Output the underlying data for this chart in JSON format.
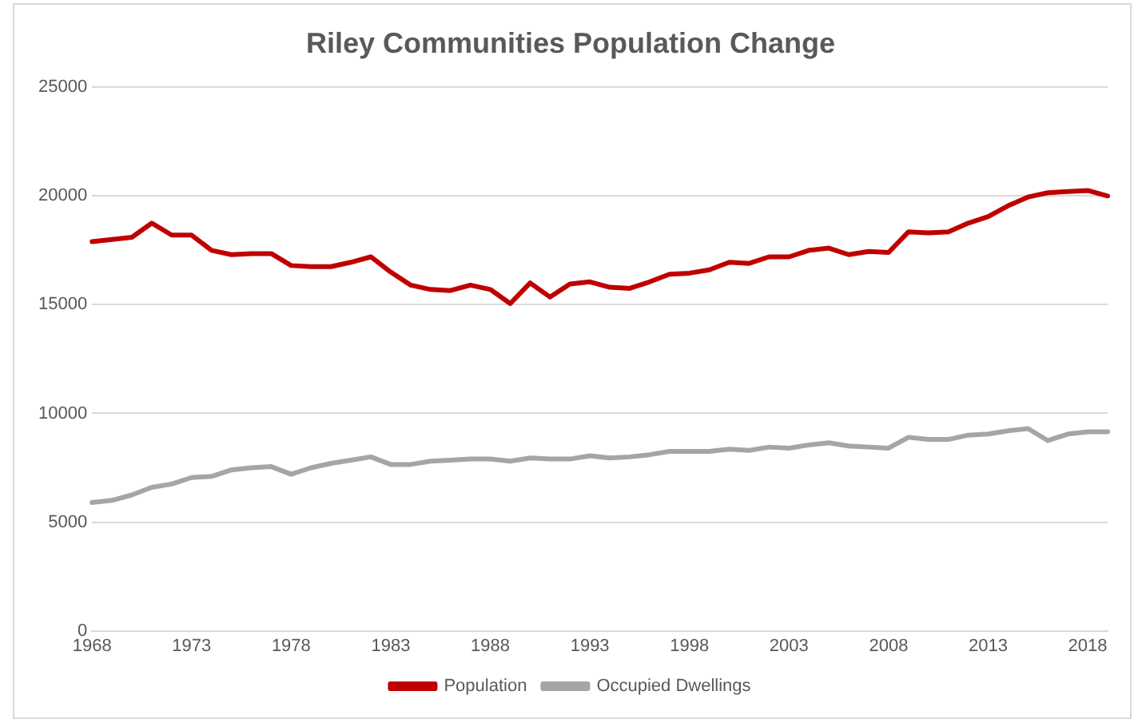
{
  "chart_data": {
    "type": "line",
    "title": "Riley Communities Population Change",
    "categories": [
      "1968",
      null,
      null,
      null,
      null,
      "1973",
      null,
      null,
      null,
      null,
      "1978",
      null,
      null,
      null,
      null,
      "1983",
      null,
      null,
      null,
      null,
      "1988",
      null,
      null,
      null,
      null,
      "1993",
      null,
      null,
      null,
      null,
      "1998",
      null,
      null,
      null,
      null,
      "2003",
      null,
      null,
      null,
      null,
      "2008",
      null,
      null,
      null,
      null,
      "2013",
      null,
      null,
      null,
      null,
      "2018",
      null
    ],
    "series": [
      {
        "name": "Population",
        "color": "#c00000",
        "values": [
          17900,
          18000,
          18100,
          18750,
          18200,
          18200,
          17500,
          17300,
          17350,
          17350,
          16800,
          16750,
          16750,
          16950,
          17200,
          16500,
          15900,
          15700,
          15650,
          15900,
          15700,
          15050,
          16000,
          15350,
          15950,
          16050,
          15800,
          15750,
          16050,
          16400,
          16450,
          16600,
          16950,
          16900,
          17200,
          17200,
          17500,
          17600,
          17300,
          17450,
          17400,
          18350,
          18300,
          18350,
          18750,
          19050,
          19550,
          19950,
          20150,
          20200,
          20250,
          20000
        ]
      },
      {
        "name": "Occupied Dwellings",
        "color": "#a5a5a5",
        "values": [
          5900,
          6000,
          6250,
          6600,
          6750,
          7050,
          7100,
          7400,
          7500,
          7550,
          7200,
          7500,
          7700,
          7850,
          8000,
          7650,
          7650,
          7800,
          7850,
          7900,
          7900,
          7800,
          7950,
          7900,
          7900,
          8050,
          7950,
          8000,
          8100,
          8250,
          8250,
          8250,
          8350,
          8300,
          8450,
          8400,
          8550,
          8650,
          8500,
          8450,
          8400,
          8900,
          8800,
          8800,
          9000,
          9050,
          9200,
          9300,
          8750,
          9050,
          9150,
          9150
        ]
      }
    ],
    "ylim": [
      0,
      25000
    ],
    "yticks": [
      0,
      5000,
      10000,
      15000,
      20000,
      25000
    ],
    "grid": "y",
    "legend": "bottom",
    "marker": "none",
    "line_style": "solid"
  }
}
